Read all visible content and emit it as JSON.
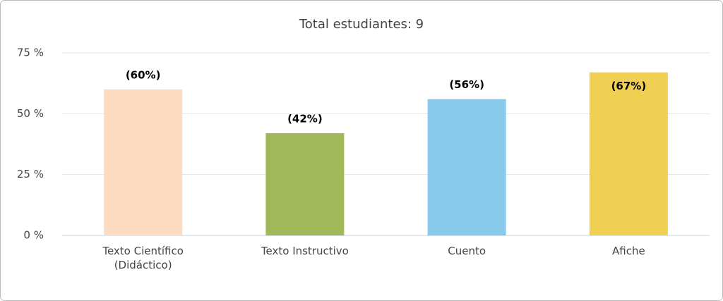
{
  "chart_data": {
    "type": "bar",
    "title": "Total estudiantes: 9",
    "categories": [
      "Texto Científico (Didáctico)",
      "Texto Instructivo",
      "Cuento",
      "Afiche"
    ],
    "values": [
      60,
      42,
      56,
      67
    ],
    "value_labels": [
      "(60%)",
      "(42%)",
      "(56%)",
      "(67%)"
    ],
    "colors": [
      "#fddbc1",
      "#a2b858",
      "#88c9ec",
      "#f0cf52"
    ],
    "ylim": [
      0,
      75
    ],
    "yticks": [
      {
        "value": 0,
        "label": "0 %"
      },
      {
        "value": 25,
        "label": "25 %"
      },
      {
        "value": 50,
        "label": "50 %"
      },
      {
        "value": 75,
        "label": "75 %"
      }
    ],
    "grid": true
  }
}
